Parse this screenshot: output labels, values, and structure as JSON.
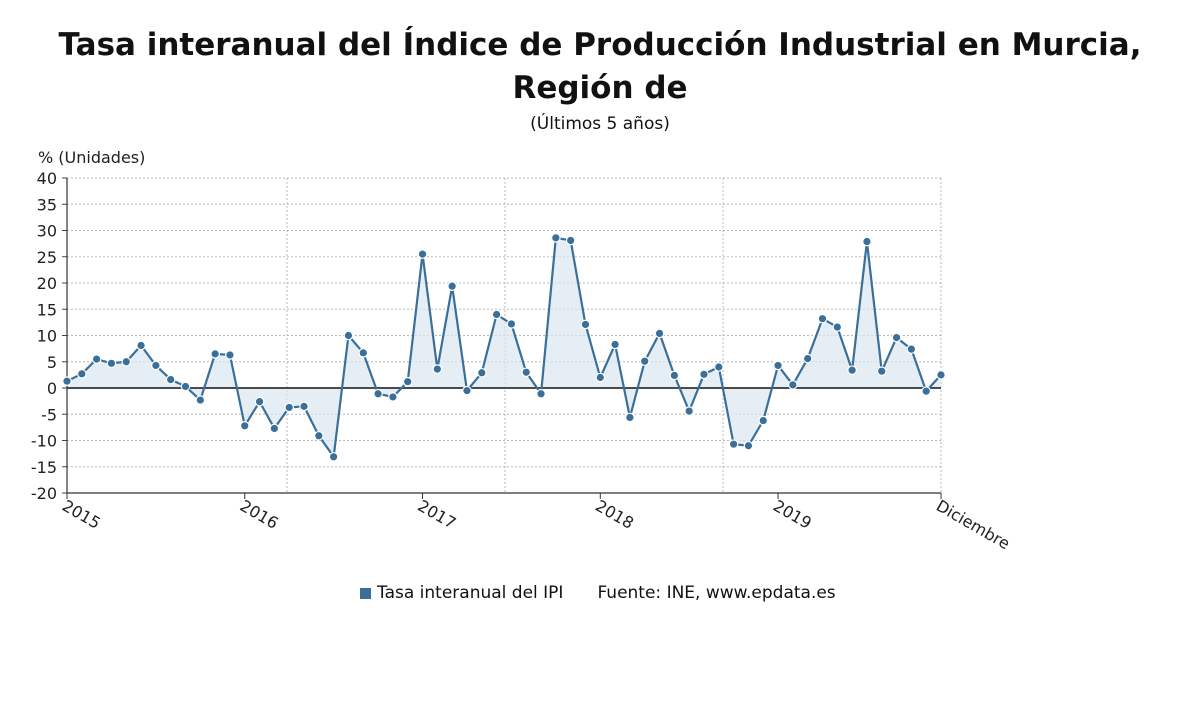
{
  "chart_data": {
    "type": "area",
    "title": "Tasa interanual del Índice de Producción Industrial en Murcia, Región de",
    "subtitle": "(Últimos 5 años)",
    "ylabel": "% (Unidades)",
    "ylim": [
      -20,
      40
    ],
    "yticks": [
      40,
      35,
      30,
      25,
      20,
      15,
      10,
      5,
      0,
      -5,
      -10,
      -15,
      -20
    ],
    "xticks": [
      "2015",
      "2016",
      "2017",
      "2018",
      "2019",
      "Diciembre"
    ],
    "grid": true,
    "legend_position": "bottom",
    "series": [
      {
        "name": "Tasa interanual del IPI",
        "color": "#3a6f9a",
        "values": [
          1.3,
          2.7,
          5.5,
          4.7,
          5.0,
          8.1,
          4.3,
          1.6,
          0.3,
          -2.3,
          6.5,
          6.3,
          -7.2,
          -2.6,
          -7.7,
          -3.7,
          -3.5,
          -9.1,
          -13.1,
          10.0,
          6.7,
          -1.1,
          -1.7,
          1.2,
          25.5,
          3.6,
          19.4,
          -0.5,
          2.9,
          14.0,
          12.2,
          3.0,
          -1.1,
          28.6,
          28.1,
          12.1,
          2.0,
          8.3,
          -5.6,
          5.1,
          10.4,
          2.4,
          -4.4,
          2.6,
          4.0,
          -10.7,
          -11.0,
          -6.2,
          4.3,
          0.6,
          5.6,
          13.2,
          11.6,
          3.4,
          27.9,
          3.2,
          9.6,
          7.4,
          -0.6,
          2.5
        ]
      }
    ]
  },
  "legend": {
    "series_label": "Tasa interanual del IPI",
    "source": "Fuente: INE, www.epdata.es"
  },
  "colors": {
    "series": "#3a6f9a",
    "fill": "#dce7f1",
    "grid": "#b8b8b8",
    "zero_line": "#333333"
  }
}
